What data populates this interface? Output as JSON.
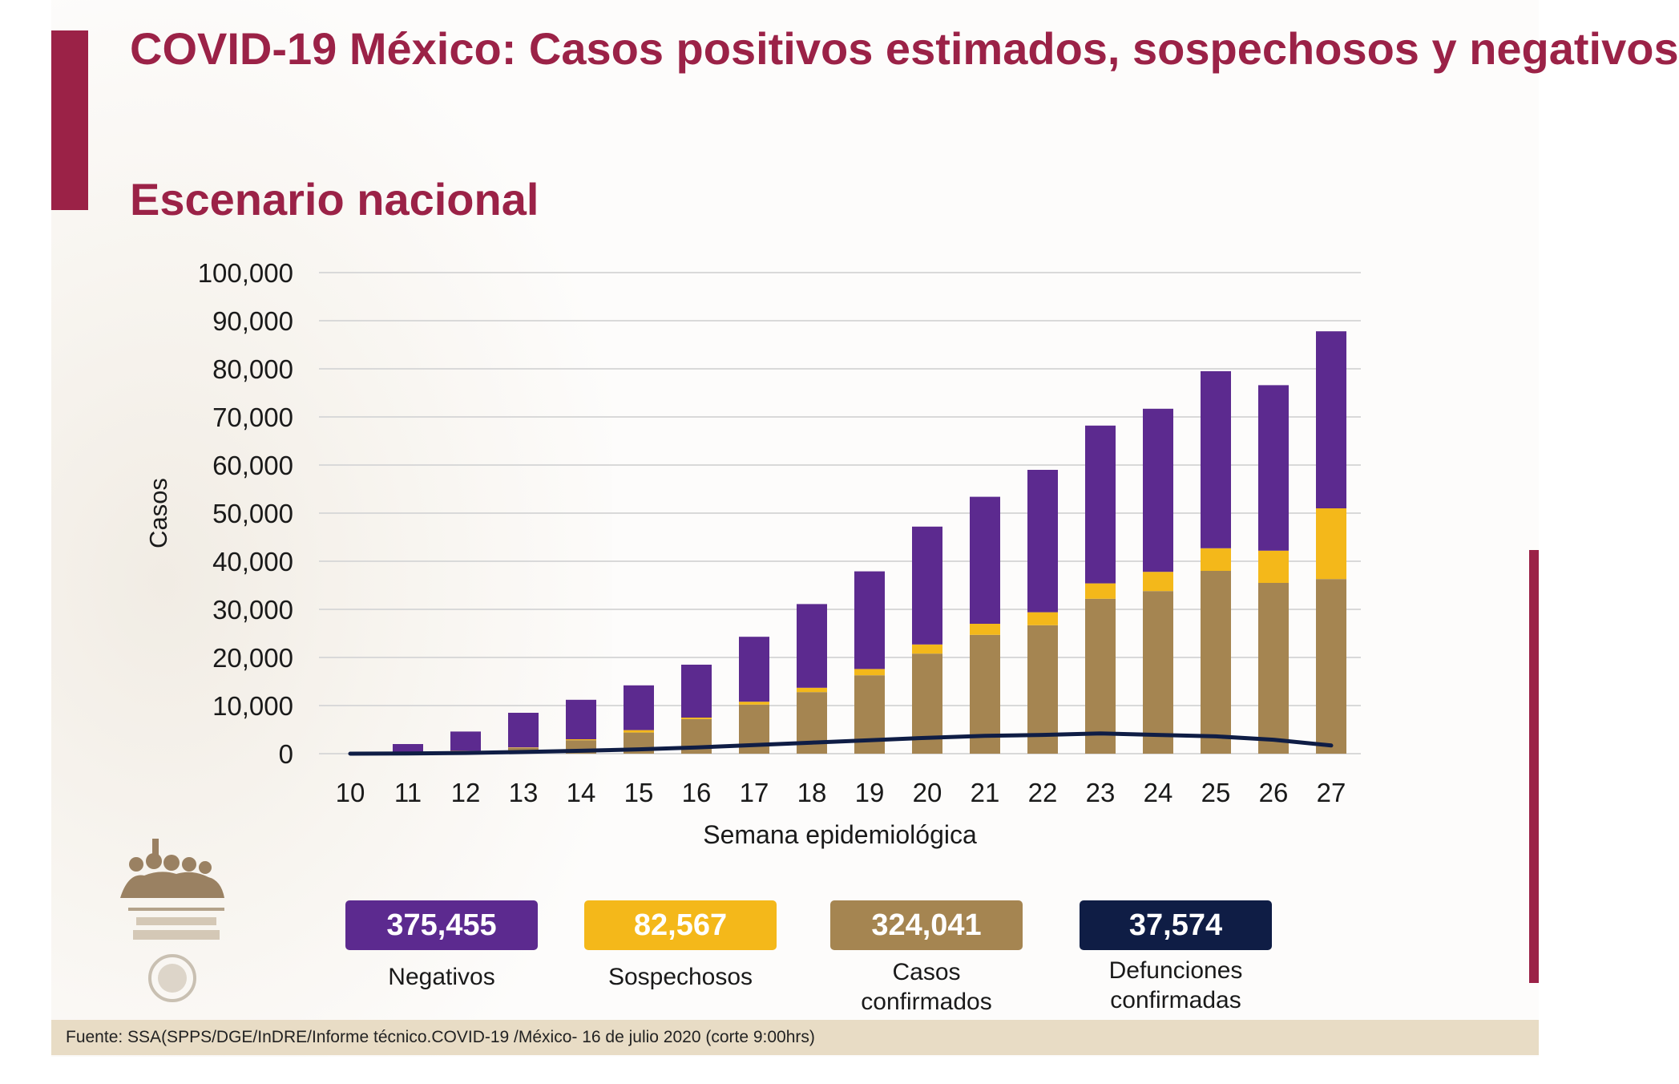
{
  "title": "COVID-19 México: Casos positivos estimados, sospechosos y negativos",
  "subtitle": "Escenario nacional",
  "colors": {
    "accent": "#9b2247",
    "negativos": "#5c2a8f",
    "sospechosos": "#f4b81a",
    "confirmados": "#a58551",
    "defunciones": "#0f1d45",
    "footer_bg": "#e8dcc5"
  },
  "chart_data": {
    "type": "bar",
    "stacked": true,
    "categories": [
      "10",
      "11",
      "12",
      "13",
      "14",
      "15",
      "16",
      "17",
      "18",
      "19",
      "20",
      "21",
      "22",
      "23",
      "24",
      "25",
      "26",
      "27"
    ],
    "series": [
      {
        "name": "Casos confirmados",
        "color": "#a58551",
        "values": [
          0,
          100,
          500,
          1200,
          2800,
          4400,
          7200,
          10200,
          12800,
          16300,
          20800,
          24700,
          26700,
          32200,
          33800,
          38000,
          35500,
          36300
        ]
      },
      {
        "name": "Sospechosos",
        "color": "#f4b81a",
        "values": [
          0,
          0,
          100,
          100,
          200,
          500,
          300,
          600,
          900,
          1300,
          1900,
          2300,
          2700,
          3200,
          4000,
          4700,
          6700,
          14700
        ]
      },
      {
        "name": "Negativos",
        "color": "#5c2a8f",
        "values": [
          0,
          1900,
          4000,
          7200,
          8200,
          9300,
          11000,
          13500,
          17400,
          20300,
          24500,
          26400,
          29600,
          32800,
          33900,
          36800,
          34400,
          36800
        ]
      }
    ],
    "line_series": {
      "name": "Defunciones confirmadas",
      "color": "#0f1d45",
      "values": [
        0,
        50,
        150,
        350,
        600,
        900,
        1300,
        1800,
        2300,
        2800,
        3300,
        3700,
        3900,
        4200,
        3900,
        3600,
        2900,
        1700
      ]
    },
    "xlabel": "Semana epidemiológica",
    "ylabel": "Casos",
    "ylim": [
      0,
      100000
    ],
    "yticks": [
      0,
      10000,
      20000,
      30000,
      40000,
      50000,
      60000,
      70000,
      80000,
      90000,
      100000
    ],
    "ytick_labels": [
      "0",
      "10,000",
      "20,000",
      "30,000",
      "40,000",
      "50,000",
      "60,000",
      "70,000",
      "80,000",
      "90,000",
      "100,000"
    ],
    "grid": true
  },
  "totals": [
    {
      "value": "375,455",
      "label_line1": "Negativos",
      "label_line2": "",
      "color": "#5c2a8f"
    },
    {
      "value": "82,567",
      "label_line1": "Sospechosos",
      "label_line2": "",
      "color": "#f4b81a"
    },
    {
      "value": "324,041",
      "label_line1": "Casos",
      "label_line2": "confirmados",
      "color": "#a58551"
    },
    {
      "value": "37,574",
      "label_line1": "Defunciones",
      "label_line2": "confirmadas",
      "color": "#0f1d45"
    }
  ],
  "footer": "Fuente: SSA(SPPS/DGE/InDRE/Informe técnico.COVID-19 /México- 16 de julio 2020 (corte 9:00hrs)"
}
